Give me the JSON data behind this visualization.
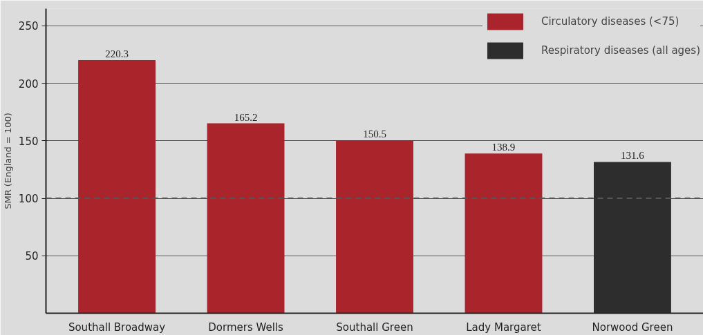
{
  "chart_data": {
    "type": "bar",
    "ylabel": "SMR (England = 100)",
    "categories": [
      "Southall Broadway",
      "Dormers Wells",
      "Southall Green",
      "Lady Margaret",
      "Norwood Green"
    ],
    "series": [
      {
        "name": "Circulatory diseases (<75)",
        "color": "#a9242b",
        "values": [
          220.3,
          165.2,
          150.5,
          138.9,
          null
        ]
      },
      {
        "name": "Respiratory diseases (all ages)",
        "color": "#2d2d2d",
        "values": [
          null,
          null,
          null,
          null,
          131.6
        ]
      }
    ],
    "ylim": [
      0,
      265
    ],
    "yticks": [
      50,
      100,
      150,
      200,
      250
    ],
    "grid": "y",
    "legend": "top right",
    "data_labels": true,
    "ref_lines": [
      {
        "axis": "y",
        "value": 100,
        "label": null,
        "color": "#555555",
        "line_style": "dashed"
      }
    ]
  }
}
